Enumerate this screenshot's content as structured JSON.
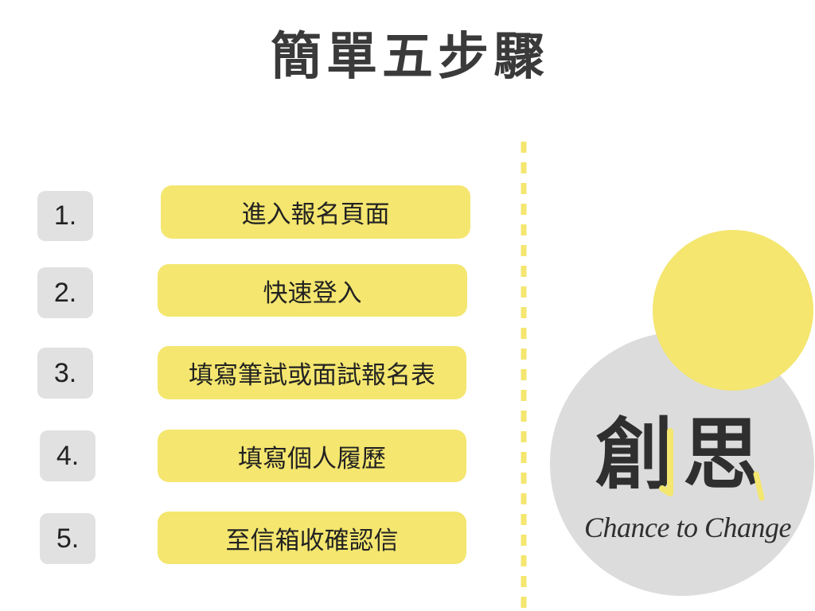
{
  "title": "簡單五步驟",
  "steps": [
    {
      "number": "1.",
      "label": "進入報名頁面"
    },
    {
      "number": "2.",
      "label": "快速登入"
    },
    {
      "number": "3.",
      "label": "填寫筆試或面試報名表"
    },
    {
      "number": "4.",
      "label": "填寫個人履歷"
    },
    {
      "number": "5.",
      "label": "至信箱收確認信"
    }
  ],
  "logo": {
    "name": "創思",
    "tagline": "Chance to Change"
  },
  "colors": {
    "accent_yellow": "#F4E66F",
    "box_gray": "#E1E1E1",
    "circle_gray": "#DCDCDC",
    "text_dark": "#222222",
    "title": "#3A3A3A"
  }
}
